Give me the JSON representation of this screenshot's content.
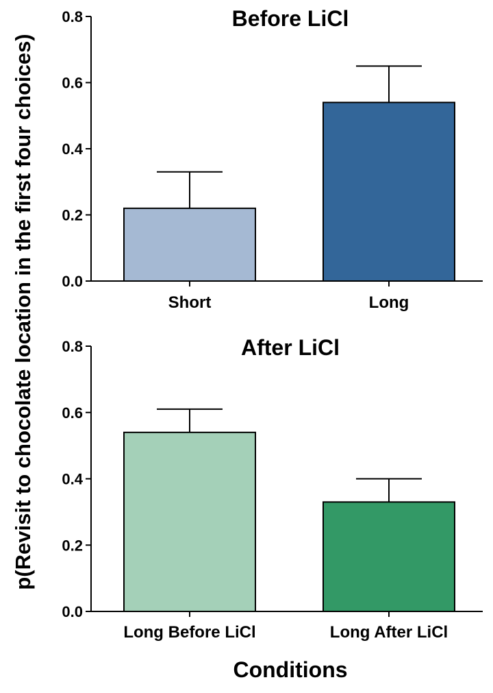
{
  "chart_data": [
    {
      "type": "bar",
      "title": "Before LiCl",
      "categories": [
        "Short",
        "Long"
      ],
      "values": [
        0.22,
        0.54
      ],
      "errors": [
        0.11,
        0.11
      ],
      "colors": [
        "#a5b9d3",
        "#336699"
      ],
      "ylim": [
        0,
        0.8
      ],
      "yticks": [
        "0.0",
        "0.2",
        "0.4",
        "0.6",
        "0.8"
      ],
      "grid": false
    },
    {
      "type": "bar",
      "title": "After LiCl",
      "categories": [
        "Long Before LiCl",
        "Long After LiCl"
      ],
      "values": [
        0.54,
        0.33
      ],
      "errors": [
        0.07,
        0.07
      ],
      "colors": [
        "#a4d0b8",
        "#339966"
      ],
      "ylim": [
        0,
        0.8
      ],
      "yticks": [
        "0.0",
        "0.2",
        "0.4",
        "0.6",
        "0.8"
      ],
      "grid": false
    }
  ],
  "ylabel": "p(Revisit to chocolate location in the first four choices)",
  "xlabel": "Conditions"
}
